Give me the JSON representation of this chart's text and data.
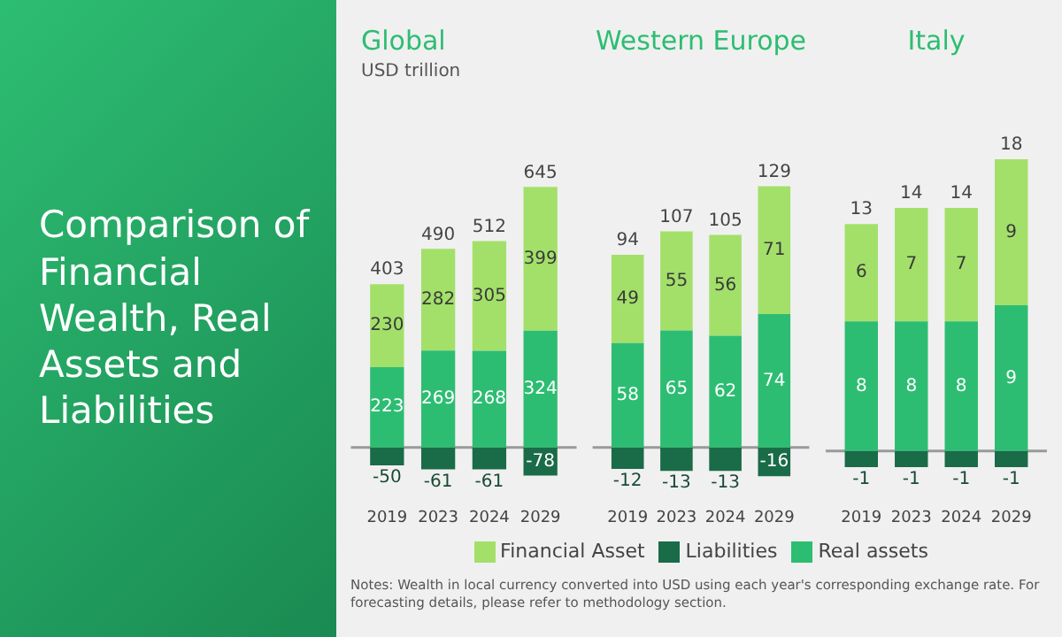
{
  "chart_data": [
    {
      "type": "other",
      "title": "Comparison of Financial Wealth, Real Assets and Liabilities"
    },
    {
      "type": "bar",
      "title": "Global",
      "subtitle": "USD trillion",
      "categories": [
        "2019",
        "2023",
        "2024",
        "2029"
      ],
      "stacked": true,
      "data_labels": true,
      "tick_labels": "x",
      "grid": false,
      "legend": false,
      "series": [
        {
          "color": "#2dbd72",
          "values": [
            223,
            269,
            268,
            324
          ]
        },
        {
          "color": "#a3e06a",
          "values": [
            230,
            282,
            305,
            399
          ]
        },
        {
          "color": "#1a6b48",
          "values": [
            -50,
            -61,
            -61,
            -78
          ]
        }
      ],
      "totals": [
        "403",
        "490",
        "512",
        "645"
      ],
      "ref_lines": [
        {
          "axis": "y",
          "value": 0,
          "color": "#9a9a9a"
        }
      ]
    },
    {
      "type": "bar",
      "title": "Western Europe",
      "categories": [
        "2019",
        "2023",
        "2024",
        "2029"
      ],
      "stacked": true,
      "data_labels": true,
      "tick_labels": "x",
      "grid": false,
      "legend": "bottom",
      "series": [
        {
          "name": "Real assets",
          "color": "#2dbd72",
          "values": [
            58,
            65,
            62,
            74
          ]
        },
        {
          "name": "Financial Asset",
          "color": "#a3e06a",
          "values": [
            49,
            55,
            56,
            71
          ]
        },
        {
          "name": "Liabilities",
          "color": "#1a6b48",
          "values": [
            -12,
            -13,
            -13,
            -16
          ]
        }
      ],
      "totals": [
        "94",
        "107",
        "105",
        "129"
      ],
      "ref_lines": [
        {
          "axis": "y",
          "value": 0,
          "color": "#9a9a9a"
        }
      ],
      "annotations": [
        "Notes: Wealth in local currency converted into USD using each year's corresponding exchange rate. For forecasting details, please refer to methodology section."
      ]
    },
    {
      "type": "bar",
      "title": "Italy",
      "categories": [
        "2019",
        "2023",
        "2024",
        "2029"
      ],
      "stacked": true,
      "data_labels": true,
      "tick_labels": "x",
      "grid": false,
      "legend": false,
      "series": [
        {
          "color": "#2dbd72",
          "values": [
            8,
            8,
            8,
            9
          ]
        },
        {
          "color": "#a3e06a",
          "values": [
            6,
            7,
            7,
            9
          ]
        },
        {
          "color": "#1a6b48",
          "values": [
            -1,
            -1,
            -1,
            -1
          ]
        }
      ],
      "totals": [
        "13",
        "14",
        "14",
        "18"
      ],
      "ref_lines": [
        {
          "axis": "y",
          "value": 0,
          "color": "#9a9a9a"
        }
      ]
    }
  ]
}
